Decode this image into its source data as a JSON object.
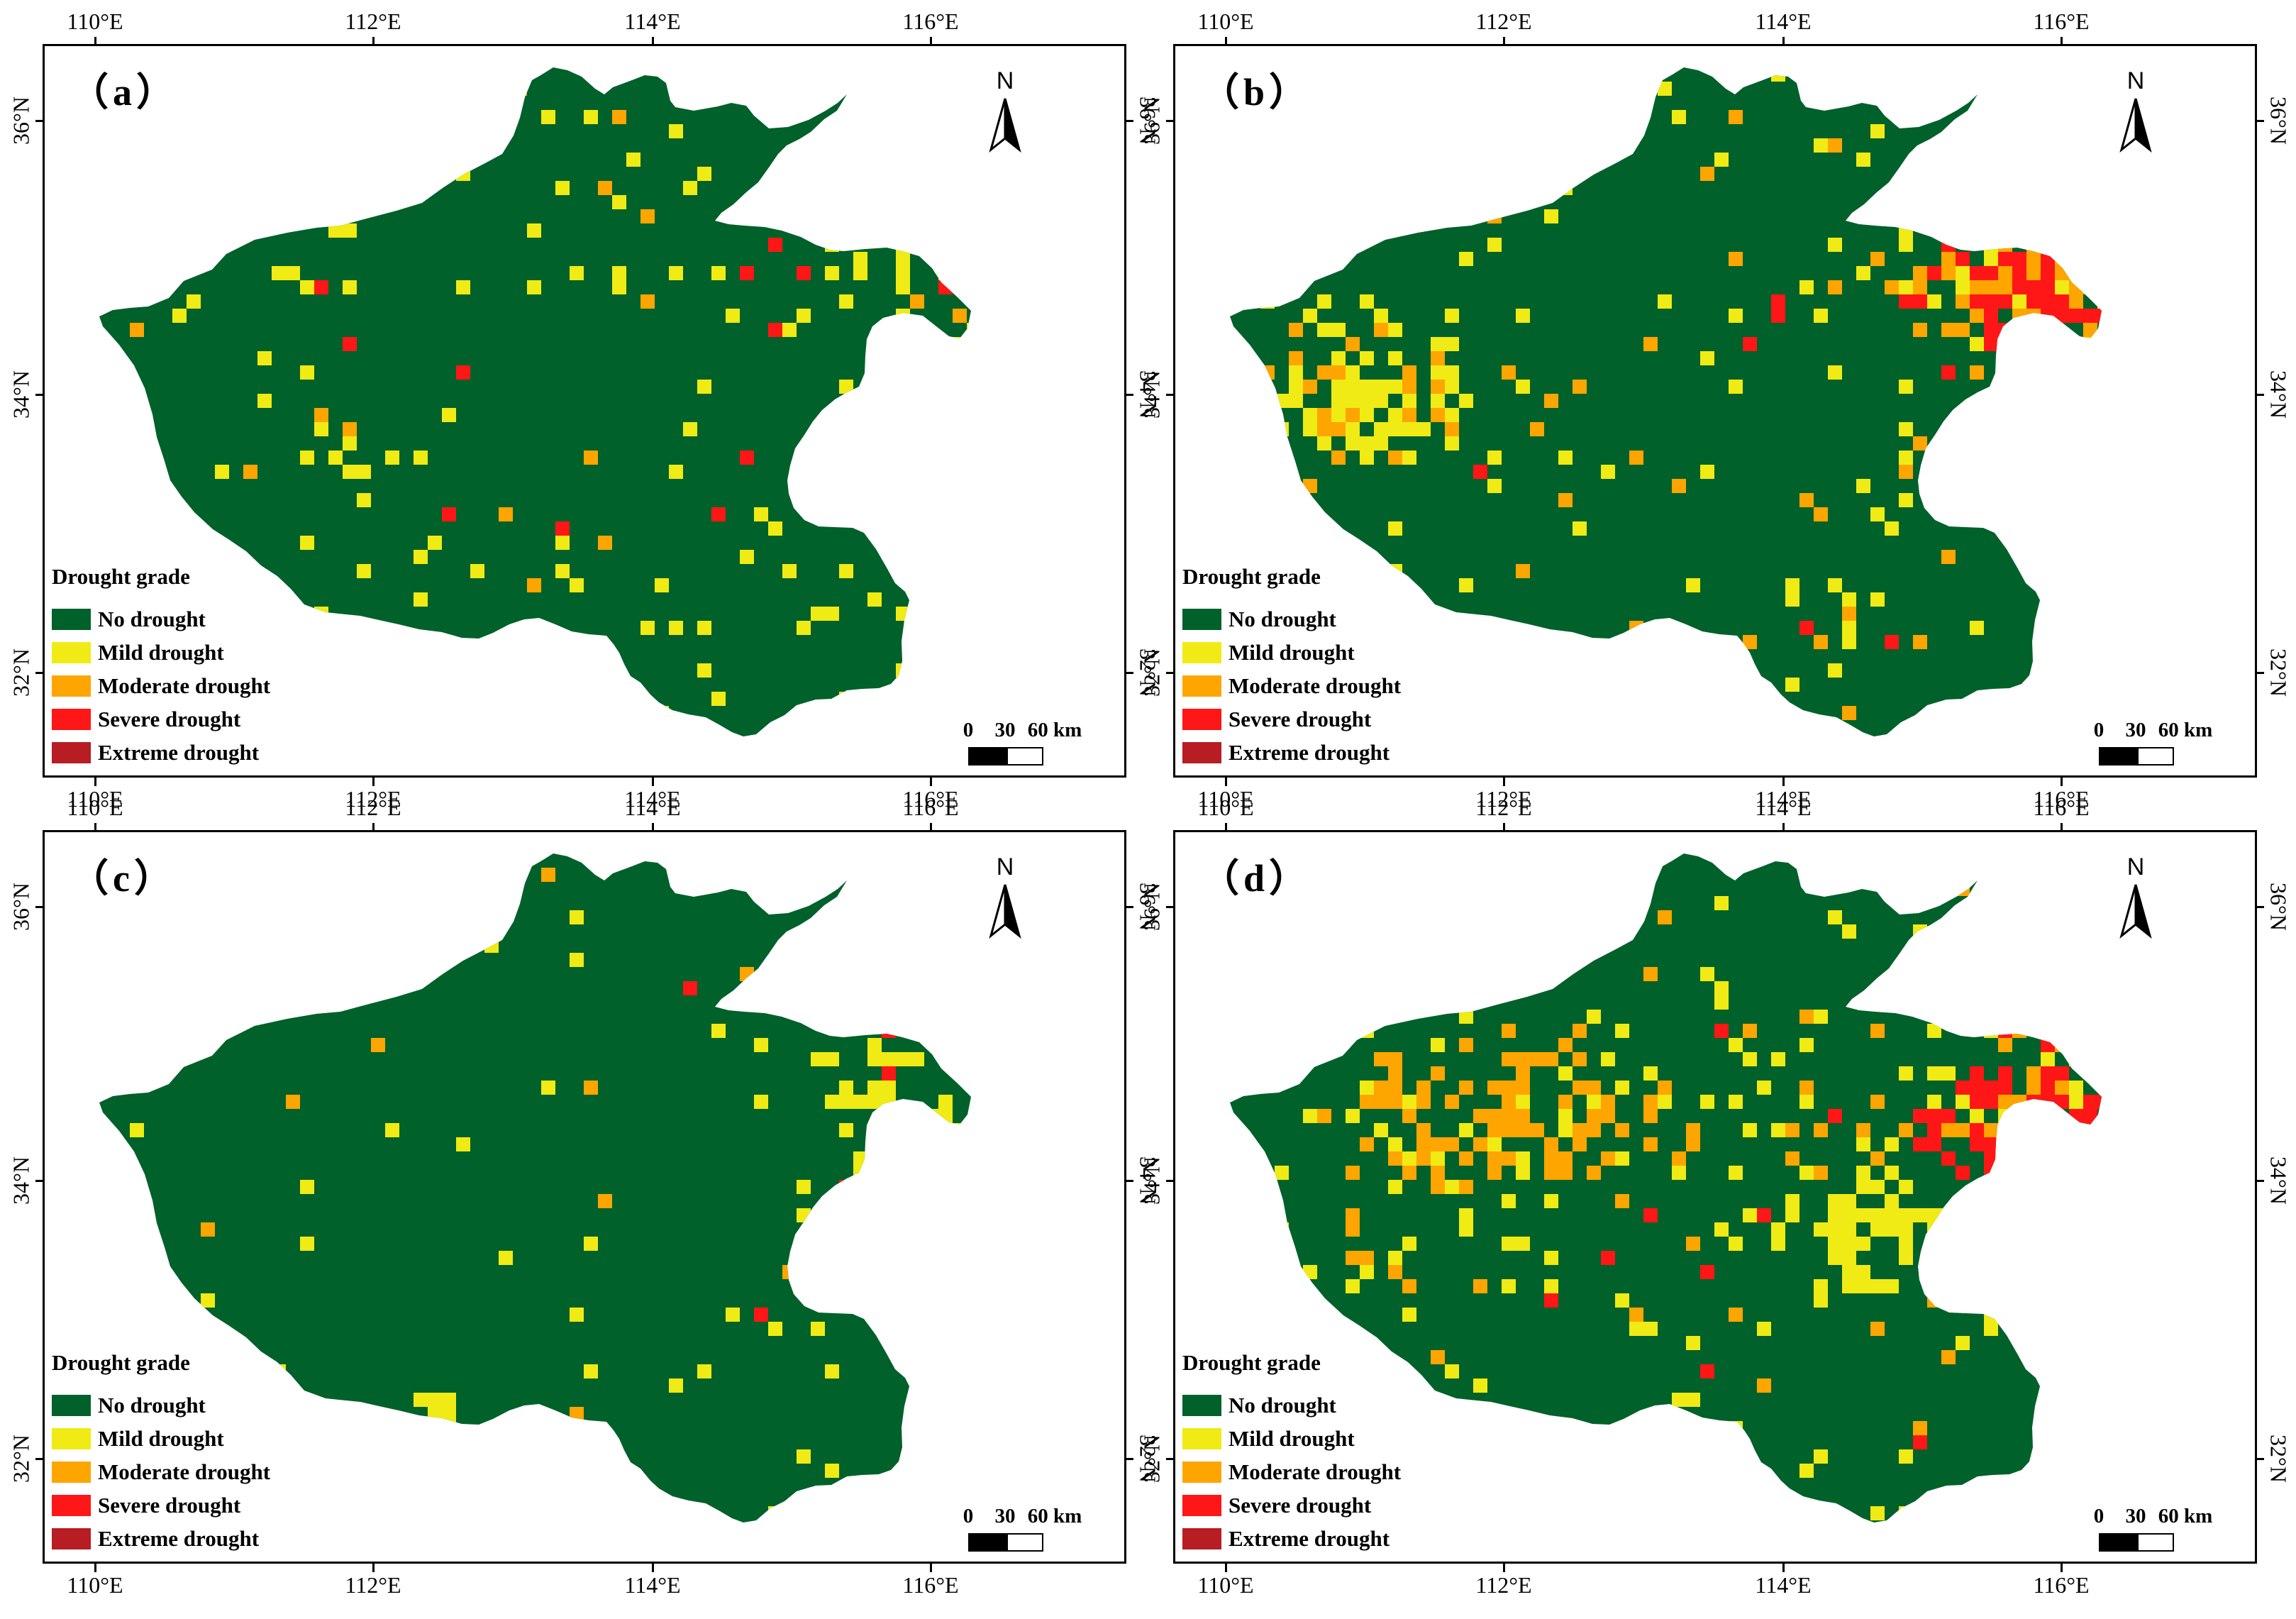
{
  "colors": {
    "no_drought": "#00612a",
    "mild": "#f0eb14",
    "moderate": "#ffa500",
    "severe": "#ff1616",
    "extreme": "#b71d22"
  },
  "axes": {
    "x_ticks": [
      "110°E",
      "112°E",
      "114°E",
      "116°E"
    ],
    "y_ticks": [
      "36°N",
      "34°N",
      "32°N"
    ]
  },
  "legend": {
    "title": "Drought grade",
    "items": [
      {
        "label": "No drought",
        "color": "#00612a"
      },
      {
        "label": "Mild drought",
        "color": "#f0eb14"
      },
      {
        "label": "Moderate drought",
        "color": "#ffa500"
      },
      {
        "label": "Severe drought",
        "color": "#ff1616"
      },
      {
        "label": "Extreme drought",
        "color": "#b71d22"
      }
    ]
  },
  "north_arrow": {
    "letter": "N",
    "icon": "north-arrow-icon"
  },
  "scale_bar": {
    "labels": [
      "0",
      "30",
      "60 km"
    ]
  },
  "panels": [
    {
      "id": "a",
      "label": "（a）"
    },
    {
      "id": "b",
      "label": "（b）"
    },
    {
      "id": "c",
      "label": "（c）"
    },
    {
      "id": "d",
      "label": "（d）"
    }
  ]
}
